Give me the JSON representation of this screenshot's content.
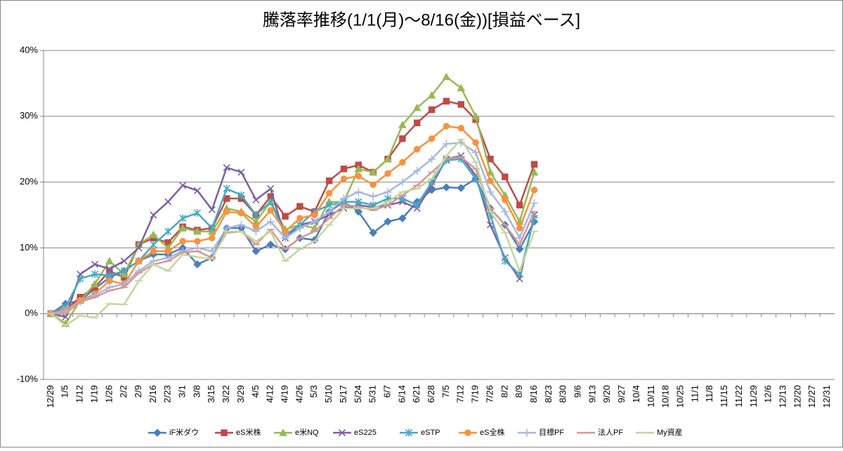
{
  "chart_data": {
    "type": "line",
    "title": "騰落率推移(1/1(月)～8/16(金))[損益ベース]",
    "categories": [
      "12/29",
      "1/5",
      "1/12",
      "1/19",
      "1/26",
      "2/2",
      "2/9",
      "2/16",
      "2/23",
      "3/1",
      "3/8",
      "3/15",
      "3/22",
      "3/29",
      "4/5",
      "4/12",
      "4/19",
      "4/26",
      "5/3",
      "5/10",
      "5/17",
      "5/24",
      "5/31",
      "6/7",
      "6/14",
      "6/21",
      "6/28",
      "7/5",
      "7/12",
      "7/19",
      "7/26",
      "8/2",
      "8/9",
      "8/16",
      "8/23",
      "8/30",
      "9/6",
      "9/13",
      "9/20",
      "9/27",
      "10/4",
      "10/11",
      "10/18",
      "10/25",
      "11/1",
      "11/8",
      "11/15",
      "11/22",
      "11/29",
      "12/6",
      "12/13",
      "12/20",
      "12/27",
      "12/31"
    ],
    "ylim": [
      -10,
      40
    ],
    "yticks": [
      {
        "value": -10,
        "label": "-10%"
      },
      {
        "value": 0,
        "label": "0%"
      },
      {
        "value": 10,
        "label": "10%"
      },
      {
        "value": 20,
        "label": "20%"
      },
      {
        "value": 30,
        "label": "30%"
      },
      {
        "value": 40,
        "label": "40%"
      }
    ],
    "grid": true,
    "legend": "bottom",
    "series": [
      {
        "name": "iF米ダウ",
        "color": "#4a7ebb",
        "marker": "diamond",
        "values": [
          0,
          1.5,
          2,
          3.8,
          5.5,
          6.5,
          8,
          9,
          9,
          10,
          7.5,
          8.5,
          13,
          13,
          9.5,
          10.5,
          9.8,
          11.5,
          11.2,
          15.5,
          17,
          15.5,
          12.3,
          14,
          14.5,
          17,
          18.8,
          19.2,
          19.1,
          20.5,
          16,
          13.5,
          9.8,
          14,
          null,
          null,
          null,
          null,
          null,
          null,
          null,
          null,
          null,
          null,
          null,
          null,
          null,
          null,
          null,
          null,
          null,
          null,
          null,
          null
        ]
      },
      {
        "name": "eS米株",
        "color": "#be4b48",
        "marker": "square",
        "values": [
          0,
          0.5,
          2.5,
          4,
          6.5,
          5.5,
          10.5,
          11.5,
          10.8,
          13.2,
          12.7,
          13,
          17.5,
          17.5,
          15,
          17.8,
          14.8,
          16.3,
          15.5,
          20.2,
          22,
          22.6,
          21.5,
          23.5,
          26.6,
          29,
          31,
          32.3,
          31.8,
          29.5,
          23.5,
          20.8,
          16.5,
          22.7,
          null,
          null,
          null,
          null,
          null,
          null,
          null,
          null,
          null,
          null,
          null,
          null,
          null,
          null,
          null,
          null,
          null,
          null,
          null,
          null
        ]
      },
      {
        "name": "e米NQ",
        "color": "#98b954",
        "marker": "triangle",
        "values": [
          0,
          -1.5,
          2,
          4.5,
          8,
          6,
          10.5,
          12,
          10,
          13,
          12.5,
          12.5,
          16,
          15.5,
          14,
          17,
          12.8,
          13.5,
          13,
          17,
          17,
          22,
          21.5,
          23.5,
          28.7,
          31.3,
          33.2,
          36,
          34.3,
          30,
          21.5,
          18,
          14,
          21.5,
          null,
          null,
          null,
          null,
          null,
          null,
          null,
          null,
          null,
          null,
          null,
          null,
          null,
          null,
          null,
          null,
          null,
          null,
          null,
          null
        ]
      },
      {
        "name": "eS225",
        "color": "#7d60a0",
        "marker": "x",
        "values": [
          0,
          -0.5,
          6,
          7.5,
          6.8,
          8,
          10,
          15,
          17,
          19.5,
          18.7,
          15.8,
          22.2,
          21.5,
          17.3,
          19,
          11.5,
          13.5,
          14,
          15,
          16,
          16.5,
          16.2,
          16.5,
          17,
          16,
          19.5,
          23.5,
          24,
          21,
          13.5,
          8.5,
          5.3,
          15,
          null,
          null,
          null,
          null,
          null,
          null,
          null,
          null,
          null,
          null,
          null,
          null,
          null,
          null,
          null,
          null,
          null,
          null,
          null,
          null
        ]
      },
      {
        "name": "eSTP",
        "color": "#46aac5",
        "marker": "star",
        "values": [
          0,
          1,
          5.3,
          6,
          5.8,
          6.5,
          8,
          10.5,
          12.5,
          14.5,
          15.3,
          13,
          19,
          18,
          15,
          17,
          12,
          13.5,
          15.5,
          16.5,
          17,
          17,
          16.5,
          17.5,
          17.5,
          16.5,
          20,
          23.3,
          23.5,
          20.5,
          15,
          8,
          6,
          14.5,
          null,
          null,
          null,
          null,
          null,
          null,
          null,
          null,
          null,
          null,
          null,
          null,
          null,
          null,
          null,
          null,
          null,
          null,
          null,
          null
        ]
      },
      {
        "name": "eS全株",
        "color": "#f69240",
        "marker": "circle",
        "values": [
          0,
          0.5,
          2,
          3,
          5,
          4.5,
          8,
          9.5,
          9.5,
          11,
          11,
          11.5,
          15.5,
          15.3,
          13.2,
          15.7,
          12.5,
          14.5,
          15,
          18.3,
          20.5,
          20.9,
          19.6,
          21.3,
          23,
          25,
          26.6,
          28.5,
          28.2,
          26,
          20.2,
          17.3,
          13,
          18.8,
          null,
          null,
          null,
          null,
          null,
          null,
          null,
          null,
          null,
          null,
          null,
          null,
          null,
          null,
          null,
          null,
          null,
          null,
          null,
          null
        ]
      },
      {
        "name": "目標PF",
        "color": "#a5b8e0",
        "marker": "plus",
        "values": [
          0,
          0.3,
          1.8,
          2.8,
          4,
          4.5,
          6.5,
          8,
          8.5,
          9.5,
          10,
          9.5,
          13,
          13.5,
          12.5,
          14,
          11.5,
          13,
          14,
          15.5,
          17.5,
          18.5,
          17.8,
          18.5,
          20,
          21.7,
          23.5,
          25.8,
          26,
          24.5,
          18.5,
          15.5,
          11.5,
          16.8,
          null,
          null,
          null,
          null,
          null,
          null,
          null,
          null,
          null,
          null,
          null,
          null,
          null,
          null,
          null,
          null,
          null,
          null,
          null,
          null
        ]
      },
      {
        "name": "法人PF",
        "color": "#d99594",
        "marker": "dash",
        "values": [
          0,
          0,
          1.8,
          2.5,
          3.5,
          4,
          6.2,
          7.5,
          8,
          9.3,
          9.5,
          8.5,
          12.3,
          12.5,
          10.5,
          12.8,
          9.8,
          11.5,
          12.5,
          14.5,
          16.5,
          16.3,
          15.7,
          16.5,
          18,
          19.5,
          21.5,
          23.5,
          23.8,
          22,
          16,
          13.5,
          10.5,
          15.5,
          null,
          null,
          null,
          null,
          null,
          null,
          null,
          null,
          null,
          null,
          null,
          null,
          null,
          null,
          null,
          null,
          null,
          null,
          null,
          null
        ]
      },
      {
        "name": "My資産",
        "color": "#c3d69b",
        "marker": "dash",
        "values": [
          0,
          -1.8,
          -0.3,
          -0.6,
          1.5,
          1.4,
          5,
          7.5,
          6.5,
          9,
          8.6,
          8.3,
          12.5,
          12.5,
          11,
          12.5,
          8,
          9.8,
          11,
          13.5,
          16,
          16,
          16,
          17,
          18.5,
          19,
          20.5,
          24,
          26.5,
          23,
          15.5,
          12.3,
          6.5,
          12.5,
          null,
          null,
          null,
          null,
          null,
          null,
          null,
          null,
          null,
          null,
          null,
          null,
          null,
          null,
          null,
          null,
          null,
          null,
          null,
          null
        ]
      }
    ]
  }
}
